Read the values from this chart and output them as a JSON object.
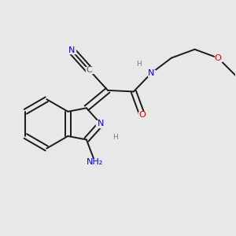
{
  "bg_color": "#e8e8e8",
  "bond_color": "#1a1a1a",
  "bond_width": 1.4,
  "N_color": "#0000ee",
  "O_color": "#dd0000",
  "C_color": "#555555",
  "H_color": "#4a9090",
  "fs": 8.0,
  "fs_small": 6.5,
  "figsize": [
    3.0,
    3.0
  ],
  "dpi": 100,
  "xlim": [
    0.0,
    1.0
  ],
  "ylim": [
    0.0,
    1.0
  ]
}
